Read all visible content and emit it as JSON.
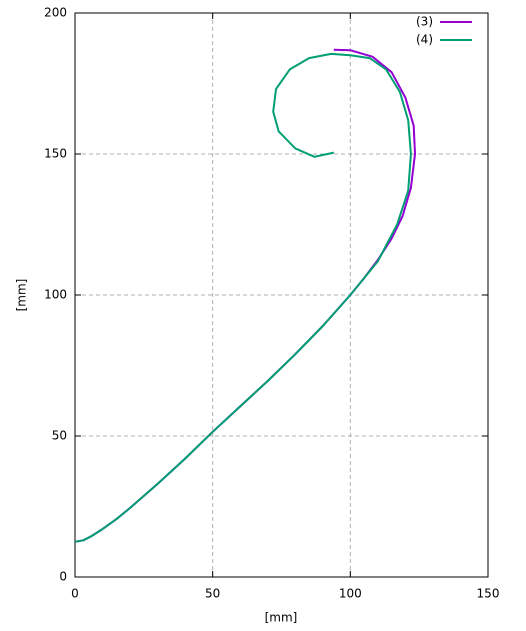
{
  "chart_data": {
    "type": "line",
    "xlabel": "[mm]",
    "ylabel": "[mm]",
    "xlim": [
      0,
      150
    ],
    "ylim": [
      0,
      200
    ],
    "xticks": [
      0,
      50,
      100,
      150
    ],
    "yticks": [
      0,
      50,
      100,
      150,
      200
    ],
    "grid": true,
    "legend": "top-right",
    "series": [
      {
        "name": "(3)",
        "color": "#9400d3",
        "x": [
          0,
          3,
          6,
          10,
          15,
          20,
          30,
          40,
          50,
          60,
          70,
          80,
          90,
          100,
          105,
          110,
          115,
          119,
          122,
          123.5,
          123,
          120,
          115,
          108,
          100,
          94
        ],
        "values": [
          12.5,
          13,
          14.5,
          17,
          20.5,
          24.5,
          33,
          42,
          51.5,
          60.5,
          69.5,
          79,
          89,
          100,
          106,
          112.5,
          120,
          128,
          138,
          150,
          160,
          170,
          179,
          184.5,
          186.8,
          187
        ]
      },
      {
        "name": "(4)",
        "color": "#009e73",
        "x": [
          0,
          3,
          6,
          10,
          15,
          20,
          30,
          40,
          50,
          60,
          70,
          80,
          90,
          100,
          105,
          110,
          117,
          121,
          122,
          121,
          118,
          113,
          107,
          100,
          93,
          85,
          78,
          73,
          72,
          74,
          80,
          87,
          94
        ],
        "values": [
          12.5,
          13,
          14.5,
          17,
          20.5,
          24.5,
          33,
          42,
          51.5,
          60.5,
          69.5,
          79,
          89,
          100,
          106,
          112,
          125,
          137,
          150,
          162,
          172,
          180,
          184,
          185,
          185.5,
          184,
          180,
          173,
          165,
          158,
          152,
          149,
          150.5
        ]
      }
    ]
  }
}
